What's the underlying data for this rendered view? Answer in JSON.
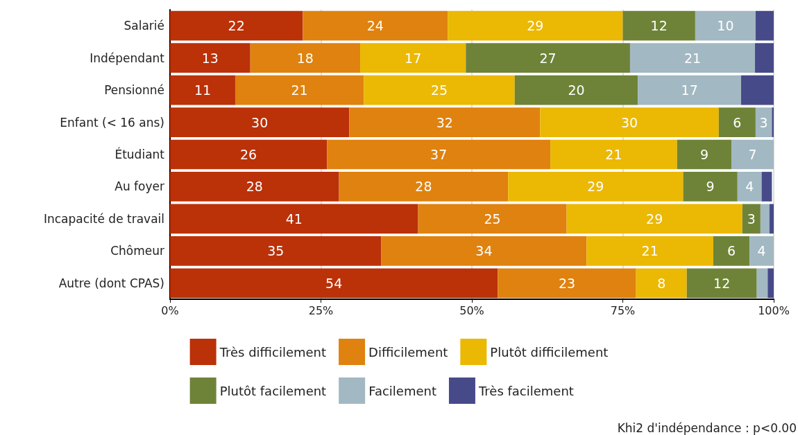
{
  "chart_data": {
    "type": "bar",
    "orientation": "horizontal",
    "stacked": true,
    "categories": [
      "Salarié",
      "Indépendant",
      "Pensionné",
      "Enfant (< 16 ans)",
      "Étudiant",
      "Au foyer",
      "Incapacité de travail",
      "Chômeur",
      "Autre (dont CPAS)"
    ],
    "series": [
      {
        "name": "Très difficilement",
        "color": "#bb3108",
        "values": [
          22,
          13.3,
          10.8,
          29.7,
          26,
          28,
          41.1,
          35,
          54.3
        ],
        "value_labels": [
          "22",
          "13",
          "11",
          "30",
          "26",
          "28",
          "41",
          "35",
          "54"
        ]
      },
      {
        "name": "Difficilement",
        "color": "#e0820f",
        "values": [
          24,
          18.2,
          21.3,
          31.6,
          37,
          28,
          24.6,
          34,
          22.9
        ],
        "value_labels": [
          "24",
          "18",
          "21",
          "32",
          "37",
          "28",
          "25",
          "34",
          "23"
        ]
      },
      {
        "name": "Plutôt difficilement",
        "color": "#ebb804",
        "values": [
          29,
          17.5,
          25,
          29.6,
          21,
          29,
          29.1,
          21,
          8.4
        ],
        "value_labels": [
          "29",
          "17",
          "25",
          "30",
          "21",
          "29",
          "29",
          "21",
          "8"
        ]
      },
      {
        "name": "Plutôt facilement",
        "color": "#6e8337",
        "values": [
          12,
          27.2,
          20.4,
          6.1,
          9,
          9,
          3,
          6,
          11.6
        ],
        "value_labels": [
          "12",
          "27",
          "20",
          "6",
          "9",
          "9",
          "3",
          "6",
          "12"
        ]
      },
      {
        "name": "Facilement",
        "color": "#a2b8c2",
        "values": [
          10,
          20.7,
          17.1,
          2.7,
          7,
          4,
          1.5,
          4,
          1.8
        ],
        "value_labels": [
          "10",
          "21",
          "17",
          "3",
          "7",
          "4",
          null,
          "4",
          null
        ]
      },
      {
        "name": "Très facilement",
        "color": "#474a89",
        "values": [
          3,
          3.1,
          5.4,
          0.3,
          0,
          1.7,
          0.7,
          0,
          1
        ]
      }
    ],
    "xlim": [
      0,
      100
    ],
    "xticks": [
      {
        "value": 0,
        "label": "0%"
      },
      {
        "value": 25,
        "label": "25%"
      },
      {
        "value": 50,
        "label": "50%"
      },
      {
        "value": 75,
        "label": "75%"
      },
      {
        "value": 100,
        "label": "100%"
      }
    ],
    "grid": "x",
    "legend": "bottom",
    "annotations": [
      "Khi2 d'indépendance : p<0.00"
    ]
  }
}
